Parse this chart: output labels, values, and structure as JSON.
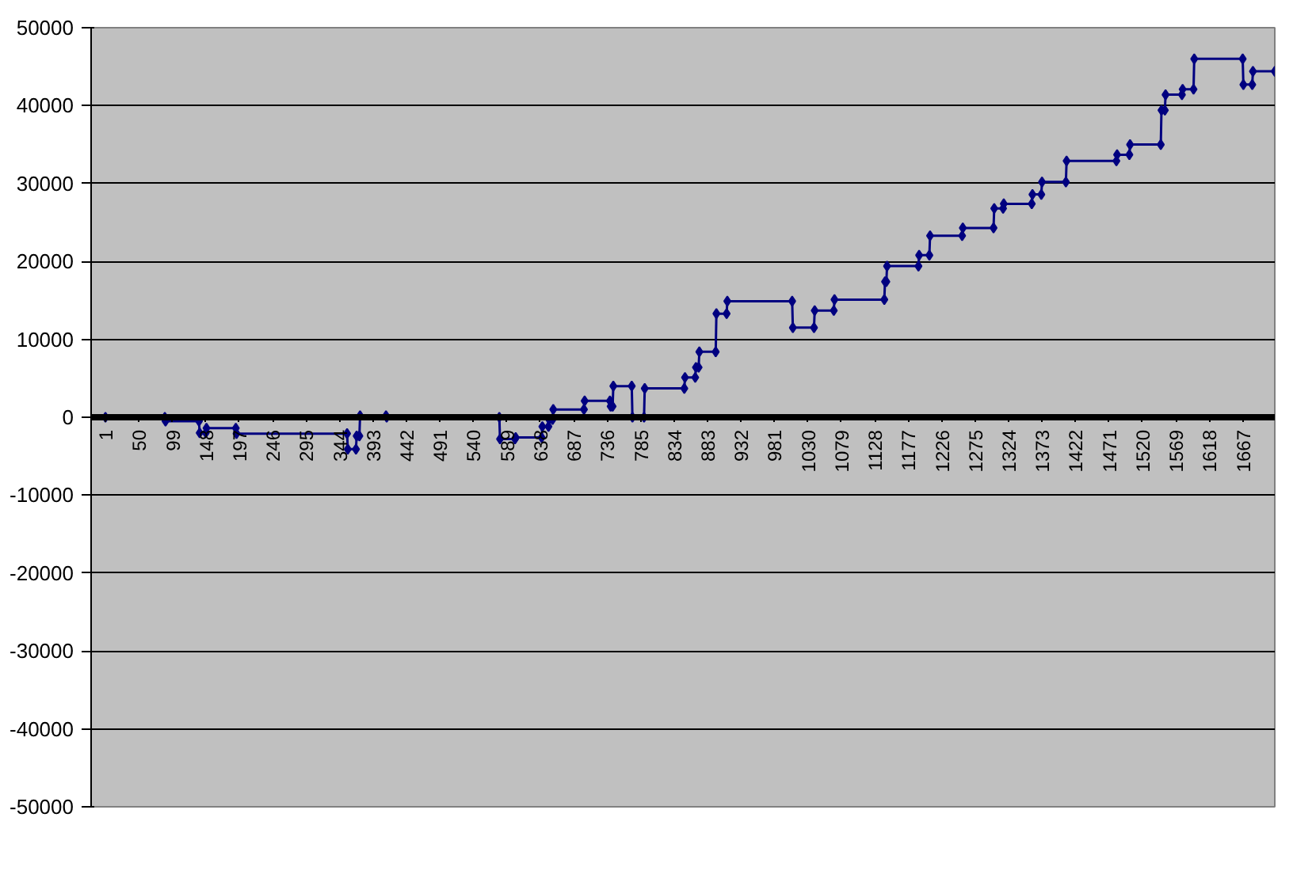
{
  "chart_data": {
    "type": "line",
    "x": [
      1,
      88,
      89,
      138,
      139,
      148,
      149,
      192,
      193,
      355,
      356,
      368,
      369,
      373,
      374,
      412,
      413,
      578,
      579,
      601,
      602,
      640,
      641,
      650,
      651,
      656,
      657,
      702,
      703,
      740,
      741,
      744,
      745,
      772,
      773,
      790,
      791,
      849,
      850,
      865,
      866,
      870,
      871,
      895,
      896,
      911,
      912,
      1007,
      1008,
      1039,
      1040,
      1068,
      1069,
      1142,
      1143,
      1145,
      1146,
      1192,
      1193,
      1208,
      1209,
      1256,
      1257,
      1302,
      1303,
      1316,
      1317,
      1358,
      1359,
      1372,
      1373,
      1408,
      1409,
      1482,
      1483,
      1501,
      1502,
      1547,
      1548,
      1553,
      1554,
      1578,
      1579,
      1595,
      1596,
      1667,
      1668,
      1681,
      1682,
      1714
    ],
    "series": [
      {
        "color": "#000080",
        "values": [
          0,
          0,
          -500,
          -500,
          -2000,
          -2000,
          -1400,
          -1400,
          -2100,
          -2100,
          -4100,
          -4100,
          -2400,
          -2400,
          200,
          200,
          0,
          0,
          -2800,
          -2800,
          -2600,
          -2600,
          -1200,
          -1200,
          -300,
          -300,
          1000,
          1000,
          2100,
          2100,
          1400,
          1400,
          4000,
          4000,
          0,
          0,
          3700,
          3700,
          5100,
          5100,
          6400,
          6400,
          8400,
          8400,
          13300,
          13300,
          14900,
          14900,
          11500,
          11500,
          13700,
          13700,
          15100,
          15100,
          17400,
          17400,
          19400,
          19400,
          20800,
          20800,
          23300,
          23300,
          24300,
          24300,
          26800,
          26800,
          27400,
          27400,
          28600,
          28600,
          30200,
          30200,
          32900,
          32900,
          33700,
          33700,
          35000,
          35000,
          39400,
          39400,
          41400,
          41400,
          42100,
          42100,
          46000,
          46000,
          42700,
          42700,
          44400,
          44400
        ]
      }
    ],
    "xlim": [
      -20,
      1714
    ],
    "xticks": [
      1,
      50,
      99,
      148,
      197,
      246,
      295,
      344,
      393,
      442,
      491,
      540,
      589,
      638,
      687,
      736,
      785,
      834,
      883,
      932,
      981,
      1030,
      1079,
      1128,
      1177,
      1226,
      1275,
      1324,
      1373,
      1422,
      1471,
      1520,
      1569,
      1618,
      1667
    ],
    "ylim": [
      -50000,
      50000
    ],
    "yticks": [
      -50000,
      -40000,
      -30000,
      -20000,
      -10000,
      0,
      10000,
      20000,
      30000,
      40000,
      50000
    ],
    "grid": "y",
    "marker": "diamond",
    "line_style": "solid"
  }
}
